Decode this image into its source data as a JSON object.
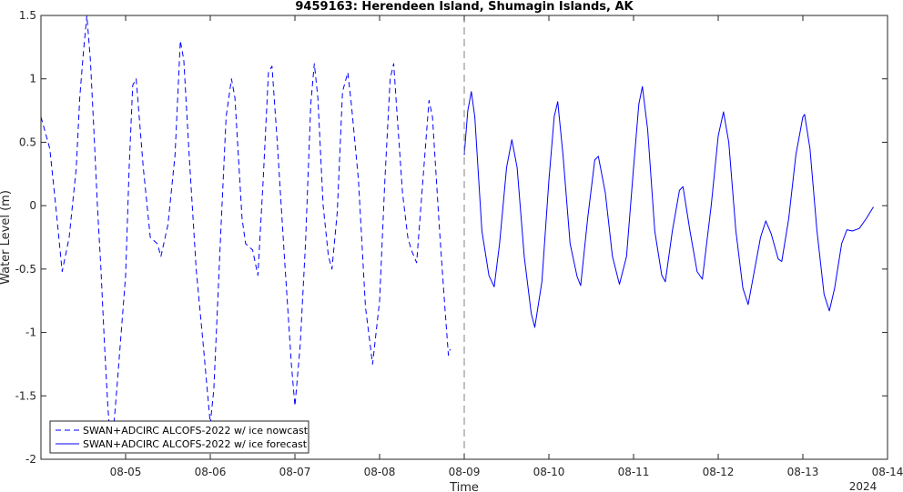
{
  "chart_data": {
    "type": "line",
    "title": "9459163: Herendeen Island, Shumagin Islands, AK",
    "xlabel": "Time",
    "ylabel": "Water Level (m)",
    "x_tick_labels": [
      "08-05",
      "08-06",
      "08-07",
      "08-08",
      "08-09",
      "08-10",
      "08-11",
      "08-12",
      "08-13",
      "08-14"
    ],
    "x_secondary_label": "2024",
    "y_ticks": [
      -2,
      -1.5,
      -1,
      -0.5,
      0,
      0.5,
      1,
      1.5
    ],
    "y_tick_labels": [
      "-2",
      "-1.5",
      "-1",
      "-0.5",
      "0",
      "0.5",
      "1",
      "1.5"
    ],
    "xlim": [
      "2024-08-04 00:00",
      "2024-08-14 00:00"
    ],
    "ylim": [
      -2,
      1.5
    ],
    "grid": false,
    "legend_position": "bottom-left",
    "nowcast_forecast_divider": "2024-08-09 00:00",
    "series": [
      {
        "name": "SWAN+ADCIRC ALCOFS-2022 w/ ice nowcast",
        "style": "dashed",
        "color": "#0000ff",
        "points": [
          [
            "2024-08-04 00:00",
            0.7
          ],
          [
            "2024-08-04 02:30",
            0.45
          ],
          [
            "2024-08-04 04:00",
            0.05
          ],
          [
            "2024-08-04 06:00",
            -0.52
          ],
          [
            "2024-08-04 08:00",
            -0.25
          ],
          [
            "2024-08-04 10:00",
            0.3
          ],
          [
            "2024-08-04 11:00",
            0.85
          ],
          [
            "2024-08-04 12:00",
            1.2
          ],
          [
            "2024-08-04 13:00",
            1.5
          ],
          [
            "2024-08-04 14:00",
            1.15
          ],
          [
            "2024-08-04 15:00",
            0.6
          ],
          [
            "2024-08-04 16:00",
            0.0
          ],
          [
            "2024-08-04 17:00",
            -0.5
          ],
          [
            "2024-08-04 18:00",
            -1.1
          ],
          [
            "2024-08-04 19:00",
            -1.6
          ],
          [
            "2024-08-04 20:00",
            -1.95
          ],
          [
            "2024-08-04 21:30",
            -1.45
          ],
          [
            "2024-08-05 00:00",
            -0.55
          ],
          [
            "2024-08-05 01:00",
            0.3
          ],
          [
            "2024-08-05 02:00",
            0.95
          ],
          [
            "2024-08-05 03:00",
            1.0
          ],
          [
            "2024-08-05 05:00",
            0.3
          ],
          [
            "2024-08-05 07:00",
            -0.25
          ],
          [
            "2024-08-05 09:00",
            -0.3
          ],
          [
            "2024-08-05 10:00",
            -0.4
          ],
          [
            "2024-08-05 12:00",
            -0.15
          ],
          [
            "2024-08-05 14:00",
            0.4
          ],
          [
            "2024-08-05 15:30",
            1.3
          ],
          [
            "2024-08-05 16:30",
            1.15
          ],
          [
            "2024-08-05 18:00",
            0.4
          ],
          [
            "2024-08-05 20:00",
            -0.5
          ],
          [
            "2024-08-05 22:00",
            -1.1
          ],
          [
            "2024-08-06 00:00",
            -1.72
          ],
          [
            "2024-08-06 01:00",
            -1.45
          ],
          [
            "2024-08-06 03:00",
            -0.2
          ],
          [
            "2024-08-06 04:30",
            0.7
          ],
          [
            "2024-08-06 06:00",
            1.0
          ],
          [
            "2024-08-06 07:00",
            0.85
          ],
          [
            "2024-08-06 09:00",
            -0.1
          ],
          [
            "2024-08-06 10:00",
            -0.3
          ],
          [
            "2024-08-06 12:00",
            -0.35
          ],
          [
            "2024-08-06 13:30",
            -0.55
          ],
          [
            "2024-08-06 15:00",
            0.2
          ],
          [
            "2024-08-06 16:30",
            1.05
          ],
          [
            "2024-08-06 17:30",
            1.1
          ],
          [
            "2024-08-06 19:00",
            0.5
          ],
          [
            "2024-08-06 21:00",
            -0.4
          ],
          [
            "2024-08-06 23:00",
            -1.25
          ],
          [
            "2024-08-07 00:00",
            -1.58
          ],
          [
            "2024-08-07 01:30",
            -1.1
          ],
          [
            "2024-08-07 03:00",
            -0.3
          ],
          [
            "2024-08-07 04:30",
            0.8
          ],
          [
            "2024-08-07 05:30",
            1.12
          ],
          [
            "2024-08-07 06:30",
            0.85
          ],
          [
            "2024-08-07 08:00",
            0.0
          ],
          [
            "2024-08-07 09:30",
            -0.4
          ],
          [
            "2024-08-07 10:30",
            -0.5
          ],
          [
            "2024-08-07 12:00",
            -0.05
          ],
          [
            "2024-08-07 13:30",
            0.9
          ],
          [
            "2024-08-07 15:00",
            1.05
          ],
          [
            "2024-08-07 16:00",
            0.8
          ],
          [
            "2024-08-07 18:00",
            0.2
          ],
          [
            "2024-08-07 20:00",
            -0.8
          ],
          [
            "2024-08-07 22:00",
            -1.25
          ],
          [
            "2024-08-08 00:00",
            -0.75
          ],
          [
            "2024-08-08 01:30",
            0.2
          ],
          [
            "2024-08-08 03:00",
            1.0
          ],
          [
            "2024-08-08 04:00",
            1.12
          ],
          [
            "2024-08-08 05:00",
            0.7
          ],
          [
            "2024-08-08 06:30",
            0.1
          ],
          [
            "2024-08-08 08:00",
            -0.25
          ],
          [
            "2024-08-08 09:00",
            -0.35
          ],
          [
            "2024-08-08 10:30",
            -0.45
          ],
          [
            "2024-08-08 12:00",
            0.1
          ],
          [
            "2024-08-08 14:00",
            0.83
          ],
          [
            "2024-08-08 15:00",
            0.7
          ],
          [
            "2024-08-08 17:00",
            -0.2
          ],
          [
            "2024-08-08 18:30",
            -0.8
          ],
          [
            "2024-08-08 19:30",
            -1.18
          ],
          [
            "2024-08-08 20:00",
            -1.13
          ]
        ]
      },
      {
        "name": "SWAN+ADCIRC ALCOFS-2022 w/ ice forecast",
        "style": "solid",
        "color": "#0000ff",
        "points": [
          [
            "2024-08-09 00:00",
            0.4
          ],
          [
            "2024-08-09 01:00",
            0.75
          ],
          [
            "2024-08-09 02:00",
            0.9
          ],
          [
            "2024-08-09 03:00",
            0.7
          ],
          [
            "2024-08-09 05:00",
            -0.2
          ],
          [
            "2024-08-09 07:00",
            -0.55
          ],
          [
            "2024-08-09 08:30",
            -0.64
          ],
          [
            "2024-08-09 10:00",
            -0.3
          ],
          [
            "2024-08-09 12:00",
            0.3
          ],
          [
            "2024-08-09 13:30",
            0.52
          ],
          [
            "2024-08-09 15:00",
            0.3
          ],
          [
            "2024-08-09 17:00",
            -0.4
          ],
          [
            "2024-08-09 19:00",
            -0.85
          ],
          [
            "2024-08-09 20:00",
            -0.96
          ],
          [
            "2024-08-09 22:00",
            -0.6
          ],
          [
            "2024-08-10 00:00",
            0.2
          ],
          [
            "2024-08-10 01:30",
            0.7
          ],
          [
            "2024-08-10 02:30",
            0.82
          ],
          [
            "2024-08-10 04:00",
            0.4
          ],
          [
            "2024-08-10 06:00",
            -0.3
          ],
          [
            "2024-08-10 08:00",
            -0.56
          ],
          [
            "2024-08-10 09:00",
            -0.63
          ],
          [
            "2024-08-10 11:00",
            -0.1
          ],
          [
            "2024-08-10 13:00",
            0.36
          ],
          [
            "2024-08-10 14:00",
            0.39
          ],
          [
            "2024-08-10 16:00",
            0.1
          ],
          [
            "2024-08-10 18:00",
            -0.4
          ],
          [
            "2024-08-10 20:00",
            -0.62
          ],
          [
            "2024-08-10 22:00",
            -0.4
          ],
          [
            "2024-08-11 00:00",
            0.3
          ],
          [
            "2024-08-11 01:30",
            0.8
          ],
          [
            "2024-08-11 02:30",
            0.94
          ],
          [
            "2024-08-11 04:00",
            0.6
          ],
          [
            "2024-08-11 06:00",
            -0.2
          ],
          [
            "2024-08-11 08:00",
            -0.55
          ],
          [
            "2024-08-11 09:00",
            -0.6
          ],
          [
            "2024-08-11 11:00",
            -0.2
          ],
          [
            "2024-08-11 13:00",
            0.12
          ],
          [
            "2024-08-11 14:00",
            0.15
          ],
          [
            "2024-08-11 16:00",
            -0.2
          ],
          [
            "2024-08-11 18:00",
            -0.52
          ],
          [
            "2024-08-11 19:30",
            -0.58
          ],
          [
            "2024-08-11 22:00",
            0.0
          ],
          [
            "2024-08-12 00:00",
            0.55
          ],
          [
            "2024-08-12 01:30",
            0.74
          ],
          [
            "2024-08-12 03:00",
            0.5
          ],
          [
            "2024-08-12 05:00",
            -0.2
          ],
          [
            "2024-08-12 07:00",
            -0.65
          ],
          [
            "2024-08-12 08:30",
            -0.78
          ],
          [
            "2024-08-12 10:00",
            -0.55
          ],
          [
            "2024-08-12 12:00",
            -0.25
          ],
          [
            "2024-08-12 13:30",
            -0.12
          ],
          [
            "2024-08-12 15:00",
            -0.22
          ],
          [
            "2024-08-12 17:00",
            -0.42
          ],
          [
            "2024-08-12 18:00",
            -0.44
          ],
          [
            "2024-08-12 20:00",
            -0.1
          ],
          [
            "2024-08-12 22:00",
            0.4
          ],
          [
            "2024-08-13 00:00",
            0.7
          ],
          [
            "2024-08-13 00:30",
            0.72
          ],
          [
            "2024-08-13 02:00",
            0.45
          ],
          [
            "2024-08-13 04:00",
            -0.2
          ],
          [
            "2024-08-13 06:00",
            -0.7
          ],
          [
            "2024-08-13 07:30",
            -0.83
          ],
          [
            "2024-08-13 09:00",
            -0.65
          ],
          [
            "2024-08-13 11:00",
            -0.3
          ],
          [
            "2024-08-13 12:30",
            -0.19
          ],
          [
            "2024-08-13 14:00",
            -0.2
          ],
          [
            "2024-08-13 16:00",
            -0.18
          ],
          [
            "2024-08-13 18:00",
            -0.1
          ],
          [
            "2024-08-13 20:00",
            -0.01
          ]
        ]
      }
    ]
  }
}
